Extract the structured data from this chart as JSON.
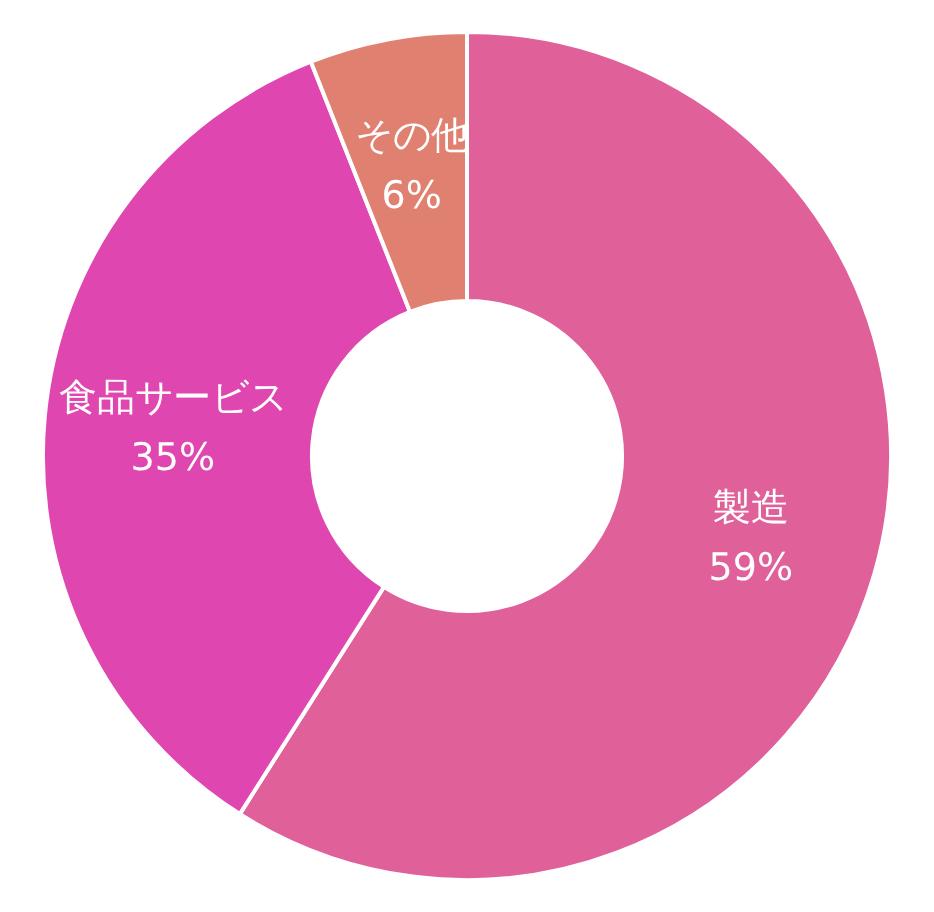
{
  "chart_data": {
    "type": "donut",
    "categories": [
      "製造",
      "食品サービス",
      "その他"
    ],
    "values": [
      59,
      35,
      6
    ],
    "value_labels": [
      "59%",
      "35%",
      "6%"
    ],
    "colors": [
      "#e0609a",
      "#e046b0",
      "#e08070"
    ],
    "legend": false
  }
}
